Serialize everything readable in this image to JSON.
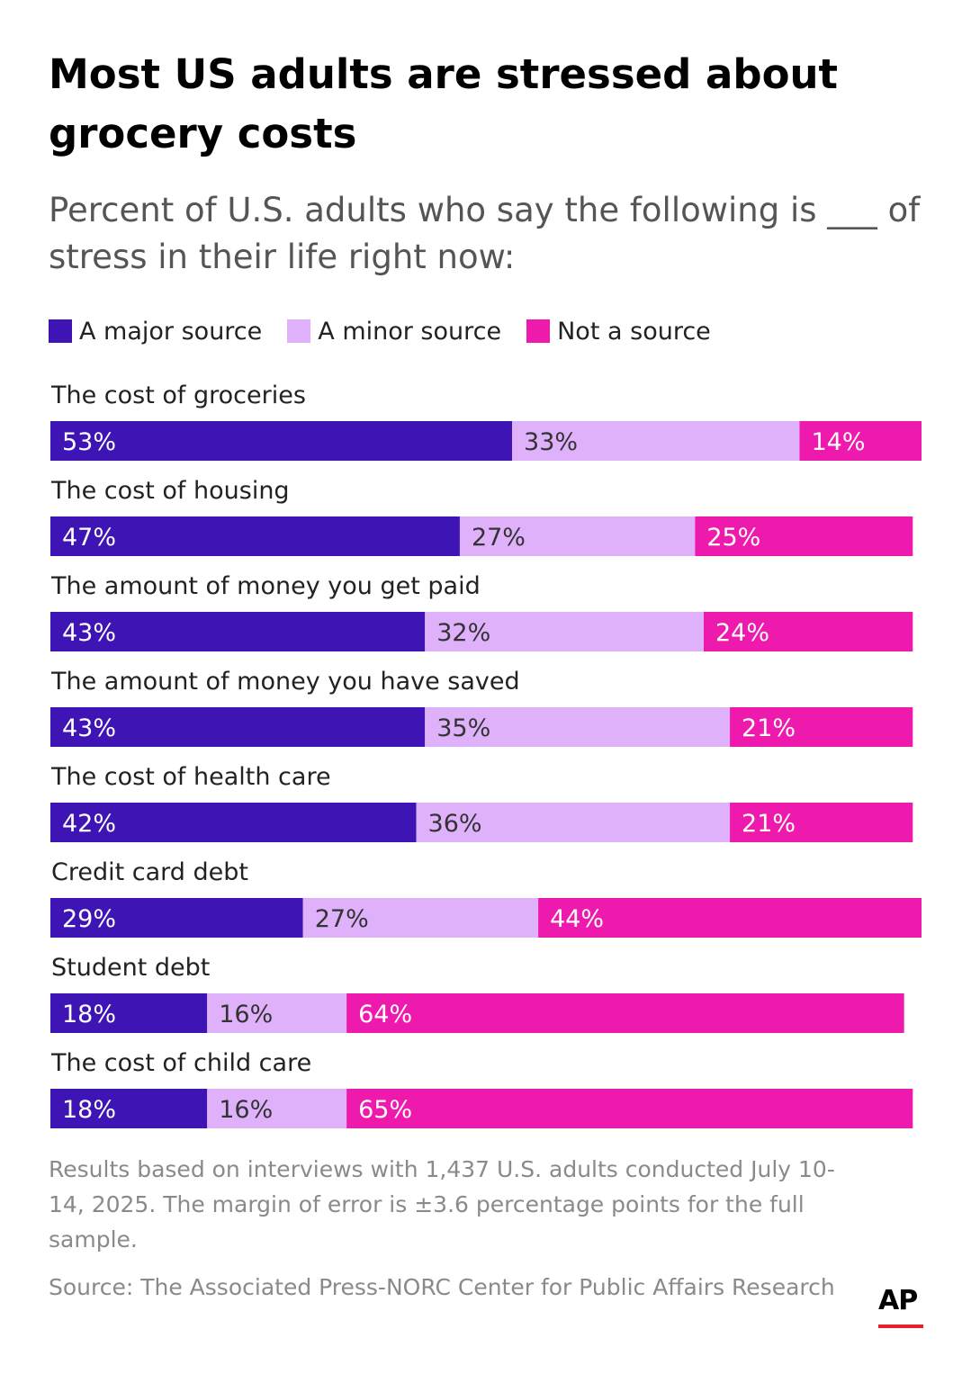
{
  "chart_data": {
    "type": "bar",
    "orientation": "horizontal",
    "stacked": true,
    "title": "Most US adults are stressed about grocery costs",
    "subtitle": "Percent of U.S. adults who say the following is ___ of stress in their life right now:",
    "legend_placement": "top-left",
    "grid": false,
    "xlim": [
      0,
      100
    ],
    "categories": [
      "The cost of groceries",
      "The cost of housing",
      "The amount of money you get paid",
      "The amount of money you have saved",
      "The cost of health care",
      "Credit card debt",
      "Student debt",
      "The cost of child care"
    ],
    "series": [
      {
        "name": "A major source",
        "color": "#3f14b5",
        "values": [
          53,
          47,
          43,
          43,
          42,
          29,
          18,
          18
        ]
      },
      {
        "name": "A minor source",
        "color": "#dfb1fb",
        "values": [
          33,
          27,
          32,
          35,
          36,
          27,
          16,
          16
        ]
      },
      {
        "name": "Not a source",
        "color": "#ee19ad",
        "values": [
          14,
          25,
          24,
          21,
          21,
          44,
          64,
          65
        ]
      }
    ],
    "value_suffix": "%",
    "label_colors": [
      "#ffffff",
      "#333333",
      "#ffffff"
    ]
  },
  "note": "Results based on interviews with 1,437 U.S. adults conducted July 10-14, 2025. The margin of error is ±3.6 percentage points for the full sample.",
  "source": "Source: The Associated Press-NORC Center for Public Affairs Research",
  "logo": {
    "text": "AP",
    "accent": "#e8202a"
  }
}
